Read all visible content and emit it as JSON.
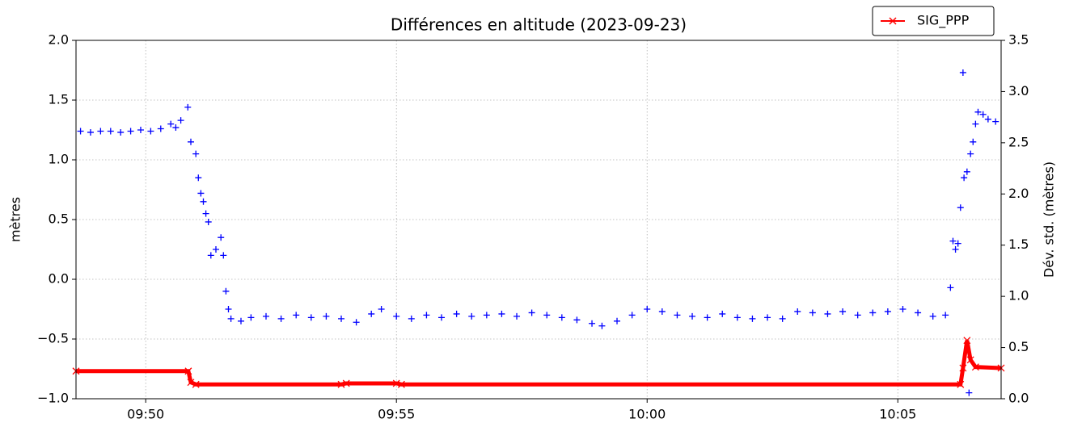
{
  "chart_data": {
    "type": "scatter",
    "title": "Différences en altitude (2023-09-23)",
    "y_label": "mètres",
    "y2_label": "Dév. std. (mètres)",
    "xlim": [
      588.61,
      607.06
    ],
    "xticks": [
      {
        "value": 590,
        "label": "09:50"
      },
      {
        "value": 595,
        "label": "09:55"
      },
      {
        "value": 600,
        "label": "10:00"
      },
      {
        "value": 605,
        "label": "10:05"
      }
    ],
    "ylim": [
      -1.0,
      2.0
    ],
    "yticks": [
      {
        "value": -1.0,
        "label": "−1.0"
      },
      {
        "value": -0.5,
        "label": "−0.5"
      },
      {
        "value": 0.0,
        "label": "0.0"
      },
      {
        "value": 0.5,
        "label": "0.5"
      },
      {
        "value": 1.0,
        "label": "1.0"
      },
      {
        "value": 1.5,
        "label": "1.5"
      },
      {
        "value": 2.0,
        "label": "2.0"
      }
    ],
    "y2lim": [
      0.0,
      3.5
    ],
    "y2ticks": [
      {
        "value": 0.0,
        "label": "0.0"
      },
      {
        "value": 0.5,
        "label": "0.5"
      },
      {
        "value": 1.0,
        "label": "1.0"
      },
      {
        "value": 1.5,
        "label": "1.5"
      },
      {
        "value": 2.0,
        "label": "2.0"
      },
      {
        "value": 2.5,
        "label": "2.5"
      },
      {
        "value": 3.0,
        "label": "3.0"
      },
      {
        "value": 3.5,
        "label": "3.5"
      }
    ],
    "grid": true,
    "legend": "upper right",
    "series": [
      {
        "color": "#0000ff",
        "marker": "+",
        "x": [
          588.7,
          588.9,
          589.1,
          589.3,
          589.5,
          589.7,
          589.9,
          590.1,
          590.3,
          590.5,
          590.6,
          590.7,
          590.84,
          590.9,
          591.0,
          591.05,
          591.1,
          591.15,
          591.2,
          591.25,
          591.3,
          591.4,
          591.5,
          591.55,
          591.6,
          591.65,
          591.7,
          591.9,
          592.1,
          592.4,
          592.7,
          593.0,
          593.3,
          593.6,
          593.9,
          594.2,
          594.5,
          594.7,
          595.0,
          595.3,
          595.6,
          595.9,
          596.2,
          596.5,
          596.8,
          597.1,
          597.4,
          597.7,
          598.0,
          598.3,
          598.6,
          598.9,
          599.1,
          599.4,
          599.7,
          600.0,
          600.3,
          600.6,
          600.9,
          601.2,
          601.5,
          601.8,
          602.1,
          602.4,
          602.7,
          603.0,
          603.3,
          603.6,
          603.9,
          604.2,
          604.5,
          604.8,
          605.1,
          605.4,
          605.7,
          605.95,
          606.05,
          606.1,
          606.15,
          606.2,
          606.25,
          606.3,
          606.32,
          606.38,
          606.42,
          606.45,
          606.5,
          606.55,
          606.6,
          606.7,
          606.8,
          606.95
        ],
        "values": [
          1.24,
          1.23,
          1.24,
          1.24,
          1.23,
          1.24,
          1.25,
          1.24,
          1.26,
          1.3,
          1.27,
          1.33,
          1.44,
          1.15,
          1.05,
          0.85,
          0.72,
          0.65,
          0.55,
          0.48,
          0.2,
          0.25,
          0.35,
          0.2,
          -0.1,
          -0.25,
          -0.33,
          -0.35,
          -0.32,
          -0.31,
          -0.33,
          -0.3,
          -0.32,
          -0.31,
          -0.33,
          -0.36,
          -0.29,
          -0.25,
          -0.31,
          -0.33,
          -0.3,
          -0.32,
          -0.29,
          -0.31,
          -0.3,
          -0.29,
          -0.31,
          -0.28,
          -0.3,
          -0.32,
          -0.34,
          -0.37,
          -0.39,
          -0.35,
          -0.3,
          -0.25,
          -0.27,
          -0.3,
          -0.31,
          -0.32,
          -0.29,
          -0.32,
          -0.33,
          -0.32,
          -0.33,
          -0.27,
          -0.28,
          -0.29,
          -0.27,
          -0.3,
          -0.28,
          -0.27,
          -0.25,
          -0.28,
          -0.31,
          -0.3,
          -0.07,
          0.32,
          0.25,
          0.3,
          0.6,
          1.73,
          0.85,
          0.9,
          -0.95,
          1.05,
          1.15,
          1.3,
          1.4,
          1.38,
          1.34,
          1.32
        ]
      },
      {
        "name": "SIG_PPP",
        "color": "#ff0000",
        "marker": "x",
        "axis": "y2",
        "x": [
          588.61,
          590.85,
          590.9,
          591.0,
          593.9,
          594.0,
          595.0,
          595.1,
          606.25,
          606.3,
          606.38,
          606.45,
          606.55,
          607.06
        ],
        "values": [
          0.27,
          0.27,
          0.16,
          0.14,
          0.14,
          0.15,
          0.15,
          0.14,
          0.14,
          0.3,
          0.57,
          0.38,
          0.31,
          0.3
        ]
      }
    ]
  }
}
